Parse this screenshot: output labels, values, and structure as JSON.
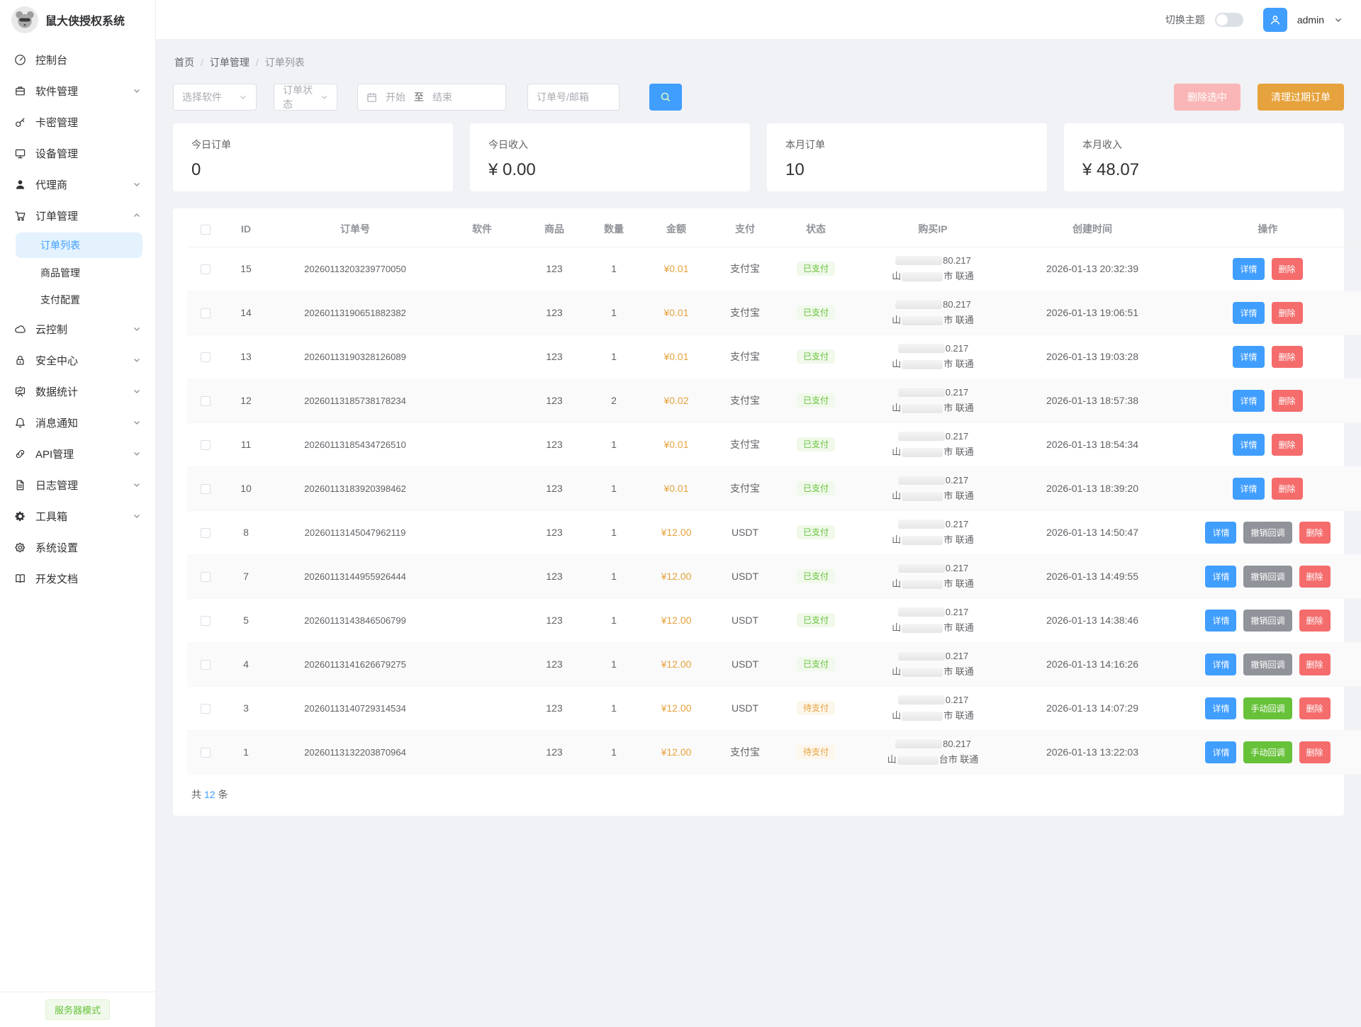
{
  "app": {
    "title": "鼠大侠授权系统"
  },
  "topbar": {
    "theme_label": "切换主题",
    "username": "admin"
  },
  "sidebar": {
    "items": [
      {
        "key": "dashboard",
        "label": "控制台",
        "icon": "dashboard",
        "chevron": "none"
      },
      {
        "key": "software",
        "label": "软件管理",
        "icon": "software",
        "chevron": "down"
      },
      {
        "key": "kami",
        "label": "卡密管理",
        "icon": "key",
        "chevron": "none"
      },
      {
        "key": "device",
        "label": "设备管理",
        "icon": "monitor",
        "chevron": "none"
      },
      {
        "key": "agent",
        "label": "代理商",
        "icon": "person",
        "chevron": "down"
      },
      {
        "key": "order",
        "label": "订单管理",
        "icon": "cart",
        "chevron": "up",
        "children": [
          {
            "key": "order-list",
            "label": "订单列表",
            "active": true
          },
          {
            "key": "product-mgmt",
            "label": "商品管理",
            "active": false
          },
          {
            "key": "pay-config",
            "label": "支付配置",
            "active": false
          }
        ]
      },
      {
        "key": "cloud",
        "label": "云控制",
        "icon": "cloud",
        "chevron": "down"
      },
      {
        "key": "security",
        "label": "安全中心",
        "icon": "lock",
        "chevron": "down"
      },
      {
        "key": "stats",
        "label": "数据统计",
        "icon": "board",
        "chevron": "down"
      },
      {
        "key": "notify",
        "label": "消息通知",
        "icon": "bell",
        "chevron": "down"
      },
      {
        "key": "api",
        "label": "API管理",
        "icon": "link",
        "chevron": "down"
      },
      {
        "key": "log",
        "label": "日志管理",
        "icon": "file",
        "chevron": "down"
      },
      {
        "key": "toolbox",
        "label": "工具箱",
        "icon": "gear-solid",
        "chevron": "down"
      },
      {
        "key": "settings",
        "label": "系统设置",
        "icon": "gear",
        "chevron": "none"
      },
      {
        "key": "docs",
        "label": "开发文档",
        "icon": "book",
        "chevron": "none"
      }
    ],
    "footer_badge": "服务器模式"
  },
  "breadcrumb": [
    "首页",
    "订单管理",
    "订单列表"
  ],
  "filters": {
    "software_placeholder": "选择软件",
    "status_placeholder": "订单状态",
    "date_start": "开始",
    "date_to": "至",
    "date_end": "结束",
    "search_placeholder": "订单号/邮箱"
  },
  "actions": {
    "delete_selected": "删除选中",
    "clean_expired": "清理过期订单"
  },
  "stats": [
    {
      "label": "今日订单",
      "value": "0"
    },
    {
      "label": "今日收入",
      "value": "¥ 0.00"
    },
    {
      "label": "本月订单",
      "value": "10"
    },
    {
      "label": "本月收入",
      "value": "¥ 48.07"
    }
  ],
  "table": {
    "columns": [
      "",
      "ID",
      "订单号",
      "软件",
      "商品",
      "数量",
      "金额",
      "支付",
      "状态",
      "购买IP",
      "创建时间",
      "操作"
    ],
    "action_labels": {
      "detail": "详情",
      "revoke": "撤销回调",
      "manual": "手动回调",
      "delete": "删除"
    },
    "rows": [
      {
        "id": "15",
        "order_no": "20260113203239770050",
        "software": "",
        "product": "123",
        "qty": "1",
        "amount": "¥0.01",
        "pay": "支付宝",
        "status": "已支付",
        "status_type": "paid",
        "ip_suffix": "80.217",
        "loc_prefix": "山",
        "loc_suffix": "市 联通",
        "created": "2026-01-13 20:32:39",
        "actions": [
          "detail",
          "delete"
        ]
      },
      {
        "id": "14",
        "order_no": "20260113190651882382",
        "software": "",
        "product": "123",
        "qty": "1",
        "amount": "¥0.01",
        "pay": "支付宝",
        "status": "已支付",
        "status_type": "paid",
        "ip_suffix": "80.217",
        "loc_prefix": "山",
        "loc_suffix": "市 联通",
        "created": "2026-01-13 19:06:51",
        "actions": [
          "detail",
          "delete"
        ]
      },
      {
        "id": "13",
        "order_no": "20260113190328126089",
        "software": "",
        "product": "123",
        "qty": "1",
        "amount": "¥0.01",
        "pay": "支付宝",
        "status": "已支付",
        "status_type": "paid",
        "ip_suffix": "0.217",
        "loc_prefix": "山",
        "loc_suffix": "市 联通",
        "created": "2026-01-13 19:03:28",
        "actions": [
          "detail",
          "delete"
        ]
      },
      {
        "id": "12",
        "order_no": "20260113185738178234",
        "software": "",
        "product": "123",
        "qty": "2",
        "amount": "¥0.02",
        "pay": "支付宝",
        "status": "已支付",
        "status_type": "paid",
        "ip_suffix": "0.217",
        "loc_prefix": "山",
        "loc_suffix": "市 联通",
        "created": "2026-01-13 18:57:38",
        "actions": [
          "detail",
          "delete"
        ]
      },
      {
        "id": "11",
        "order_no": "20260113185434726510",
        "software": "",
        "product": "123",
        "qty": "1",
        "amount": "¥0.01",
        "pay": "支付宝",
        "status": "已支付",
        "status_type": "paid",
        "ip_suffix": "0.217",
        "loc_prefix": "山",
        "loc_suffix": "市 联通",
        "created": "2026-01-13 18:54:34",
        "actions": [
          "detail",
          "delete"
        ]
      },
      {
        "id": "10",
        "order_no": "20260113183920398462",
        "software": "",
        "product": "123",
        "qty": "1",
        "amount": "¥0.01",
        "pay": "支付宝",
        "status": "已支付",
        "status_type": "paid",
        "ip_suffix": "0.217",
        "loc_prefix": "山",
        "loc_suffix": "市 联通",
        "created": "2026-01-13 18:39:20",
        "actions": [
          "detail",
          "delete"
        ]
      },
      {
        "id": "8",
        "order_no": "20260113145047962119",
        "software": "",
        "product": "123",
        "qty": "1",
        "amount": "¥12.00",
        "pay": "USDT",
        "status": "已支付",
        "status_type": "paid",
        "ip_suffix": "0.217",
        "loc_prefix": "山",
        "loc_suffix": "市 联通",
        "created": "2026-01-13 14:50:47",
        "actions": [
          "detail",
          "revoke",
          "delete"
        ]
      },
      {
        "id": "7",
        "order_no": "20260113144955926444",
        "software": "",
        "product": "123",
        "qty": "1",
        "amount": "¥12.00",
        "pay": "USDT",
        "status": "已支付",
        "status_type": "paid",
        "ip_suffix": "0.217",
        "loc_prefix": "山",
        "loc_suffix": "市 联通",
        "created": "2026-01-13 14:49:55",
        "actions": [
          "detail",
          "revoke",
          "delete"
        ]
      },
      {
        "id": "5",
        "order_no": "20260113143846506799",
        "software": "",
        "product": "123",
        "qty": "1",
        "amount": "¥12.00",
        "pay": "USDT",
        "status": "已支付",
        "status_type": "paid",
        "ip_suffix": "0.217",
        "loc_prefix": "山",
        "loc_suffix": "市 联通",
        "created": "2026-01-13 14:38:46",
        "actions": [
          "detail",
          "revoke",
          "delete"
        ]
      },
      {
        "id": "4",
        "order_no": "20260113141626679275",
        "software": "",
        "product": "123",
        "qty": "1",
        "amount": "¥12.00",
        "pay": "USDT",
        "status": "已支付",
        "status_type": "paid",
        "ip_suffix": "0.217",
        "loc_prefix": "山",
        "loc_suffix": "市 联通",
        "created": "2026-01-13 14:16:26",
        "actions": [
          "detail",
          "revoke",
          "delete"
        ]
      },
      {
        "id": "3",
        "order_no": "20260113140729314534",
        "software": "",
        "product": "123",
        "qty": "1",
        "amount": "¥12.00",
        "pay": "USDT",
        "status": "待支付",
        "status_type": "pending",
        "ip_suffix": "0.217",
        "loc_prefix": "山",
        "loc_suffix": "市 联通",
        "created": "2026-01-13 14:07:29",
        "actions": [
          "detail",
          "manual",
          "delete"
        ]
      },
      {
        "id": "1",
        "order_no": "20260113132203870964",
        "software": "",
        "product": "123",
        "qty": "1",
        "amount": "¥12.00",
        "pay": "支付宝",
        "status": "待支付",
        "status_type": "pending",
        "ip_suffix": "80.217",
        "loc_prefix": "山",
        "loc_suffix": "台市 联通",
        "created": "2026-01-13 13:22:03",
        "actions": [
          "detail",
          "manual",
          "delete"
        ]
      }
    ]
  },
  "footer": {
    "total_prefix": "共",
    "total": "12",
    "total_suffix": "条"
  }
}
